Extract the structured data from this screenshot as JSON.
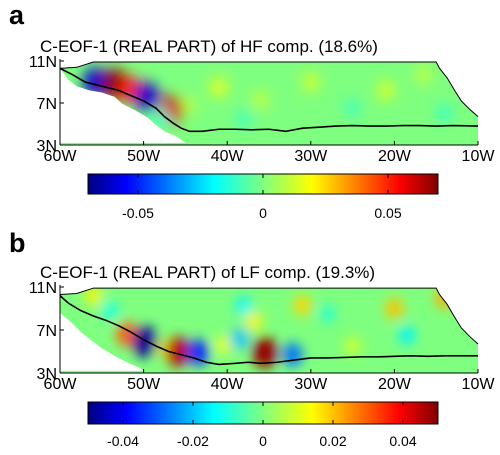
{
  "chart_data": [
    {
      "type": "heatmap",
      "panel_label": "a",
      "title": "C-EOF-1 (REAL PART) of HF comp. (18.6%)",
      "variance_explained_percent": 18.6,
      "x_ticks": [
        "60W",
        "50W",
        "40W",
        "30W",
        "20W",
        "10W"
      ],
      "x_tick_values": [
        -60,
        -50,
        -40,
        -30,
        -20,
        -10
      ],
      "y_ticks": [
        "11N",
        "7N",
        "3N"
      ],
      "y_tick_values": [
        11,
        7,
        3
      ],
      "xlim": [
        -60,
        -10
      ],
      "ylim": [
        3,
        11
      ],
      "colorbar": {
        "range": [
          -0.07,
          0.07
        ],
        "ticks": [
          "-0.05",
          "0",
          "0.05"
        ],
        "tick_values": [
          -0.05,
          0,
          0.05
        ]
      },
      "anomalies": [
        {
          "lon": -55.8,
          "lat": 9.0,
          "value": -0.06
        },
        {
          "lon": -53.5,
          "lat": 8.8,
          "value": 0.068
        },
        {
          "lon": -51.6,
          "lat": 8.3,
          "value": 0.05
        },
        {
          "lon": -49.6,
          "lat": 7.6,
          "value": -0.06
        },
        {
          "lon": -46.8,
          "lat": 6.3,
          "value": 0.06
        },
        {
          "lon": -47.8,
          "lat": 5.5,
          "value": -0.015
        },
        {
          "lon": -44.5,
          "lat": 6.8,
          "value": 0.01
        },
        {
          "lon": -41.0,
          "lat": 8.5,
          "value": 0.018
        },
        {
          "lon": -38.0,
          "lat": 5.5,
          "value": -0.012
        },
        {
          "lon": -36.0,
          "lat": 7.3,
          "value": 0.012
        },
        {
          "lon": -30.0,
          "lat": 9.0,
          "value": 0.015
        },
        {
          "lon": -25.0,
          "lat": 6.5,
          "value": -0.012
        },
        {
          "lon": -21.0,
          "lat": 8.2,
          "value": 0.016
        },
        {
          "lon": -14.0,
          "lat": 6.0,
          "value": -0.013
        },
        {
          "lon": -16.5,
          "lat": 9.7,
          "value": 0.012
        }
      ]
    },
    {
      "type": "heatmap",
      "panel_label": "b",
      "title": "C-EOF-1 (REAL PART) of LF comp. (19.3%)",
      "variance_explained_percent": 19.3,
      "x_ticks": [
        "60W",
        "50W",
        "40W",
        "30W",
        "20W",
        "10W"
      ],
      "x_tick_values": [
        -60,
        -50,
        -40,
        -30,
        -20,
        -10
      ],
      "y_ticks": [
        "11N",
        "7N",
        "3N"
      ],
      "y_tick_values": [
        11,
        7,
        3
      ],
      "xlim": [
        -60,
        -10
      ],
      "ylim": [
        3,
        11
      ],
      "colorbar": {
        "range": [
          -0.05,
          0.05
        ],
        "ticks": [
          "-0.04",
          "-0.02",
          "0",
          "0.02",
          "0.04"
        ],
        "tick_values": [
          -0.04,
          -0.02,
          0,
          0.02,
          0.04
        ]
      },
      "anomalies": [
        {
          "lon": -52.0,
          "lat": 6.6,
          "value": 0.03
        },
        {
          "lon": -49.8,
          "lat": 5.9,
          "value": -0.048
        },
        {
          "lon": -47.5,
          "lat": 5.3,
          "value": 0.012
        },
        {
          "lon": -46.0,
          "lat": 5.0,
          "value": 0.045
        },
        {
          "lon": -43.5,
          "lat": 4.9,
          "value": -0.035
        },
        {
          "lon": -40.5,
          "lat": 5.6,
          "value": 0.012
        },
        {
          "lon": -38.5,
          "lat": 6.2,
          "value": -0.02
        },
        {
          "lon": -35.5,
          "lat": 4.9,
          "value": 0.048
        },
        {
          "lon": -32.2,
          "lat": 4.7,
          "value": -0.028
        },
        {
          "lon": -38.0,
          "lat": 9.2,
          "value": -0.015
        },
        {
          "lon": -36.8,
          "lat": 7.8,
          "value": 0.015
        },
        {
          "lon": -31.0,
          "lat": 9.3,
          "value": 0.018
        },
        {
          "lon": -28.0,
          "lat": 8.5,
          "value": -0.01
        },
        {
          "lon": -20.0,
          "lat": 9.0,
          "value": 0.02
        },
        {
          "lon": -18.5,
          "lat": 6.5,
          "value": -0.015
        },
        {
          "lon": -14.0,
          "lat": 10.0,
          "value": 0.022
        },
        {
          "lon": -56.0,
          "lat": 10.2,
          "value": 0.015
        },
        {
          "lon": -54.0,
          "lat": 8.8,
          "value": -0.012
        },
        {
          "lon": -25.0,
          "lat": 5.5,
          "value": 0.01
        }
      ]
    }
  ]
}
